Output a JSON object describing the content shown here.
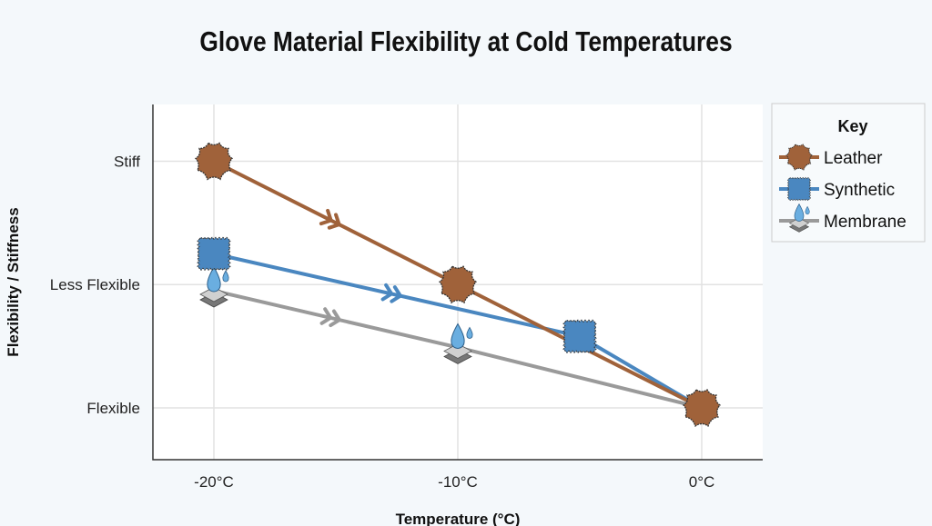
{
  "chart_data": {
    "type": "line",
    "title": "Glove Material Flexibility at Cold Temperatures",
    "xlabel": "Temperature (°C)",
    "ylabel": "Flexibility / Stiffness",
    "xlim": [
      -22.5,
      2.5
    ],
    "ylim": [
      -0.42,
      2.46
    ],
    "x_ticks": [
      {
        "value": -20,
        "label": "-20°C"
      },
      {
        "value": -10,
        "label": "-10°C"
      },
      {
        "value": 0,
        "label": "0°C"
      }
    ],
    "y_ticks": [
      {
        "value": 0,
        "label": "Flexible"
      },
      {
        "value": 1,
        "label": "Less Flexible"
      },
      {
        "value": 2,
        "label": "Stiff"
      }
    ],
    "grid": true,
    "legend": {
      "title": "Key",
      "placement": "right"
    },
    "series": [
      {
        "name": "Leather",
        "color": "#a0623a",
        "marker": "leather-hide",
        "x": [
          -20,
          -10,
          0
        ],
        "y": [
          2,
          1,
          0
        ]
      },
      {
        "name": "Synthetic",
        "color": "#4a87c0",
        "marker": "jagged-square",
        "x": [
          -20,
          -5,
          0
        ],
        "y": [
          1.25,
          0.58,
          0
        ]
      },
      {
        "name": "Membrane",
        "color": "#9a9a9a",
        "marker": "droplet-layers",
        "x": [
          -20,
          -10,
          0
        ],
        "y": [
          0.95,
          0.49,
          0
        ]
      }
    ]
  }
}
